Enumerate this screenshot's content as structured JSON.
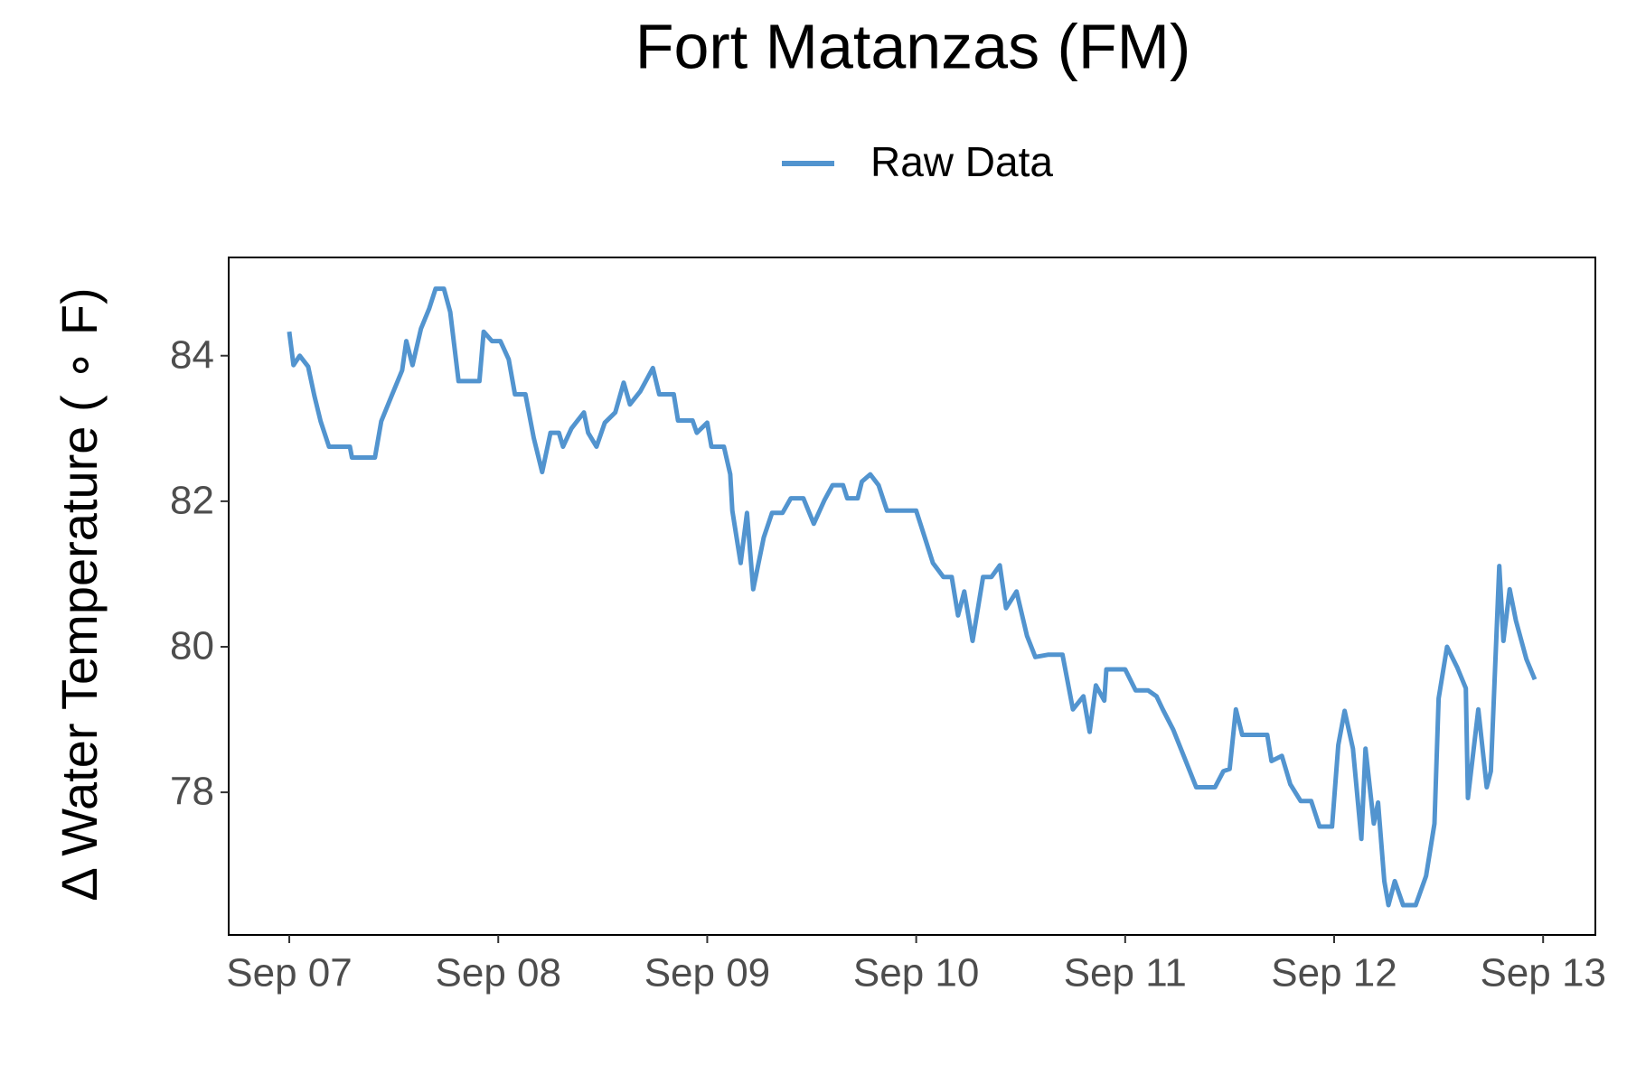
{
  "chart_data": {
    "type": "line",
    "title": "Fort Matanzas (FM)",
    "ylabel": "Δ Water Temperature ( ∘ F)",
    "x": [
      0,
      0.02,
      0.05,
      0.09,
      0.12,
      0.15,
      0.19,
      0.29,
      0.3,
      0.41,
      0.44,
      0.49,
      0.54,
      0.56,
      0.59,
      0.63,
      0.67,
      0.7,
      0.74,
      0.77,
      0.81,
      0.91,
      0.93,
      0.97,
      1.01,
      1.05,
      1.08,
      1.13,
      1.17,
      1.21,
      1.25,
      1.29,
      1.31,
      1.35,
      1.41,
      1.43,
      1.47,
      1.51,
      1.56,
      1.6,
      1.63,
      1.68,
      1.74,
      1.77,
      1.84,
      1.86,
      1.93,
      1.95,
      2.0,
      2.02,
      2.08,
      2.11,
      2.12,
      2.16,
      2.19,
      2.22,
      2.27,
      2.31,
      2.36,
      2.4,
      2.46,
      2.51,
      2.56,
      2.6,
      2.65,
      2.67,
      2.72,
      2.74,
      2.78,
      2.82,
      2.86,
      3.0,
      3.04,
      3.08,
      3.13,
      3.17,
      3.2,
      3.23,
      3.27,
      3.32,
      3.36,
      3.4,
      3.43,
      3.48,
      3.53,
      3.57,
      3.63,
      3.7,
      3.75,
      3.8,
      3.83,
      3.86,
      3.9,
      3.91,
      4.0,
      4.05,
      4.11,
      4.15,
      4.18,
      4.23,
      4.28,
      4.34,
      4.43,
      4.47,
      4.5,
      4.53,
      4.56,
      4.68,
      4.7,
      4.75,
      4.79,
      4.84,
      4.89,
      4.93,
      4.99,
      5.02,
      5.05,
      5.09,
      5.13,
      5.15,
      5.19,
      5.21,
      5.24,
      5.26,
      5.29,
      5.33,
      5.39,
      5.44,
      5.48,
      5.5,
      5.54,
      5.59,
      5.63,
      5.64,
      5.69,
      5.73,
      5.75,
      5.79,
      5.81,
      5.84,
      5.87,
      5.92,
      5.96
    ],
    "series": [
      {
        "name": "Raw Data",
        "color": "#5294cf",
        "values": [
          84.33,
          83.87,
          84.0,
          83.85,
          83.45,
          83.1,
          82.75,
          82.75,
          82.6,
          82.6,
          83.1,
          83.45,
          83.8,
          84.2,
          83.87,
          84.37,
          84.65,
          84.92,
          84.92,
          84.6,
          83.65,
          83.65,
          84.33,
          84.2,
          84.2,
          83.95,
          83.47,
          83.47,
          82.87,
          82.4,
          82.94,
          82.94,
          82.75,
          83.0,
          83.22,
          82.94,
          82.75,
          83.08,
          83.22,
          83.63,
          83.33,
          83.51,
          83.83,
          83.47,
          83.47,
          83.11,
          83.11,
          82.94,
          83.08,
          82.75,
          82.75,
          82.37,
          81.87,
          81.15,
          81.84,
          80.79,
          81.5,
          81.84,
          81.84,
          82.04,
          82.04,
          81.69,
          82.01,
          82.22,
          82.22,
          82.04,
          82.04,
          82.27,
          82.37,
          82.22,
          81.87,
          81.87,
          81.51,
          81.15,
          80.96,
          80.96,
          80.43,
          80.76,
          80.08,
          80.96,
          80.96,
          81.12,
          80.53,
          80.76,
          80.15,
          79.86,
          79.89,
          79.89,
          79.14,
          79.32,
          78.83,
          79.47,
          79.26,
          79.69,
          79.69,
          79.4,
          79.4,
          79.32,
          79.14,
          78.86,
          78.5,
          78.07,
          78.07,
          78.29,
          78.32,
          79.14,
          78.79,
          78.79,
          78.43,
          78.5,
          78.11,
          77.88,
          77.88,
          77.53,
          77.53,
          78.65,
          79.12,
          78.6,
          77.36,
          78.6,
          77.57,
          77.86,
          76.78,
          76.45,
          76.78,
          76.45,
          76.45,
          76.85,
          77.57,
          79.29,
          80.0,
          79.71,
          79.43,
          77.92,
          79.14,
          78.07,
          78.29,
          81.11,
          80.08,
          80.79,
          80.36,
          79.83,
          79.55
        ]
      }
    ],
    "xlim": [
      -0.29,
      6.25
    ],
    "xticks": [
      {
        "value": 0,
        "label": "Sep 07"
      },
      {
        "value": 1,
        "label": "Sep 08"
      },
      {
        "value": 2,
        "label": "Sep 09"
      },
      {
        "value": 3,
        "label": "Sep 10"
      },
      {
        "value": 4,
        "label": "Sep 11"
      },
      {
        "value": 5,
        "label": "Sep 12"
      },
      {
        "value": 6,
        "label": "Sep 13"
      }
    ],
    "ylim": [
      76.04,
      85.35
    ],
    "yticks": [
      78,
      80,
      82,
      84
    ],
    "grid": false,
    "legend": "top"
  }
}
